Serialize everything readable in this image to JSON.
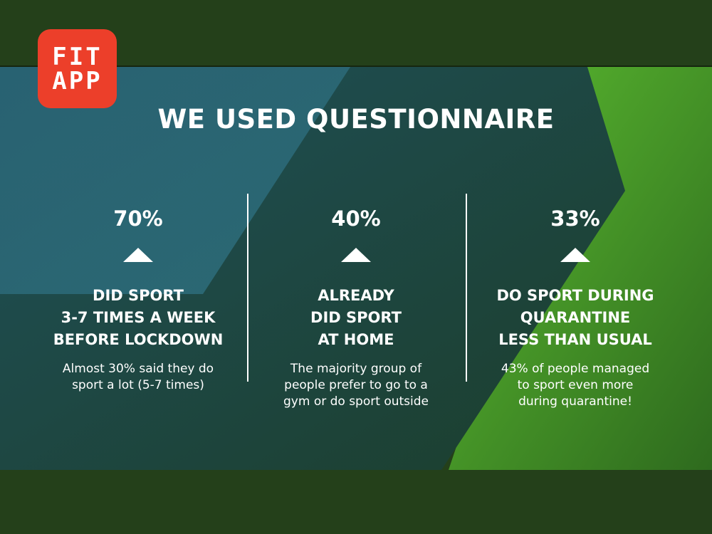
{
  "logo": {
    "lines": [
      "FIT",
      "APP"
    ]
  },
  "title": "WE USED QUESTIONNAIRE",
  "stats": [
    {
      "percent": "70%",
      "heading": [
        "DID SPORT",
        "3-7  TIMES A WEEK",
        "BEFORE LOCKDOWN"
      ],
      "description": [
        "Almost 30% said they do",
        "sport a lot (5-7 times)"
      ]
    },
    {
      "percent": "40%",
      "heading": [
        "ALREADY",
        "DID SPORT",
        "AT HOME"
      ],
      "description": [
        "The majority group of",
        "people prefer to go to a",
        "gym or do sport outside"
      ]
    },
    {
      "percent": "33%",
      "heading": [
        "DO SPORT DURING",
        "QUARANTINE",
        "LESS THAN USUAL"
      ],
      "description": [
        "43% of people managed",
        "to sport even more",
        "during quarantine!"
      ]
    }
  ],
  "colors": {
    "logo_background": "#ec3f2a",
    "dark_green": "#24401a",
    "teal_panel": "#1d4a4a",
    "light_teal": "#2d6a78",
    "bright_green": "#4faa2c",
    "text": "#ffffff"
  }
}
